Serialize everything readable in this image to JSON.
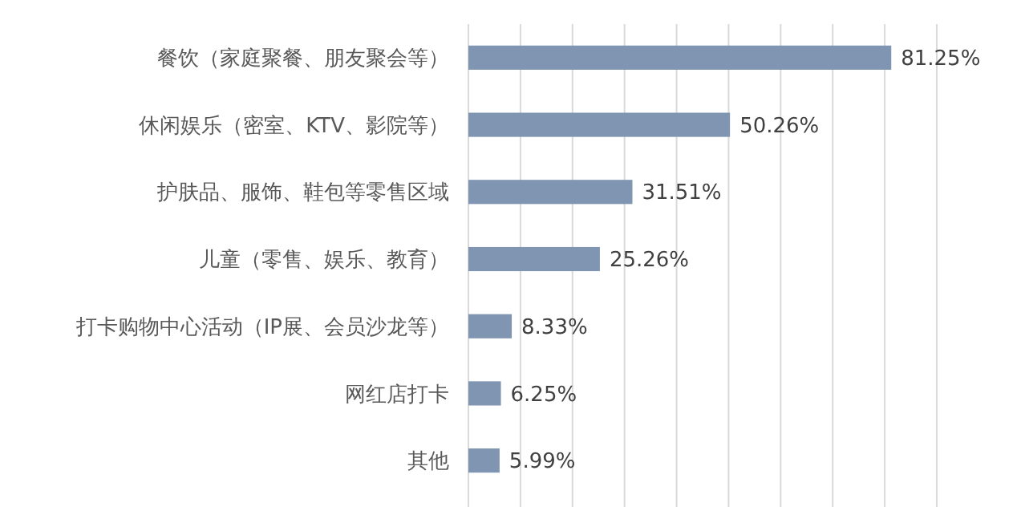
{
  "chart_data": {
    "type": "bar",
    "orientation": "horizontal",
    "categories": [
      "餐饮（家庭聚餐、朋友聚会等）",
      "休闲娱乐（密室、KTV、影院等）",
      "护肤品、服饰、鞋包等零售区域",
      "儿童（零售、娱乐、教育）",
      "打卡购物中心活动（IP展、会员沙龙等）",
      "网红店打卡",
      "其他"
    ],
    "values": [
      81.25,
      50.26,
      31.51,
      25.26,
      8.33,
      6.25,
      5.99
    ],
    "value_labels": [
      "81.25%",
      "50.26%",
      "31.51%",
      "25.26%",
      "8.33%",
      "6.25%",
      "5.99%"
    ],
    "color": "#7f95b1",
    "xlim": [
      0,
      90
    ],
    "xticks": [
      {
        "value": 0,
        "label": null
      },
      {
        "value": 10,
        "label": null
      },
      {
        "value": 20,
        "label": null
      },
      {
        "value": 30,
        "label": null
      },
      {
        "value": 40,
        "label": null
      },
      {
        "value": 50,
        "label": null
      },
      {
        "value": 60,
        "label": null
      },
      {
        "value": 70,
        "label": null
      },
      {
        "value": 80,
        "label": null
      },
      {
        "value": 90,
        "label": null
      }
    ],
    "grid": "x",
    "tick_labels": "y"
  }
}
